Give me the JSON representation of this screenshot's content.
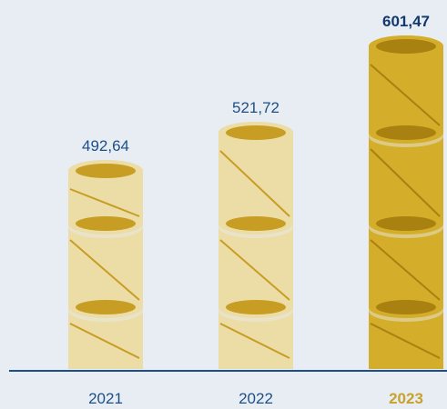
{
  "chart_data": {
    "type": "bar",
    "categories": [
      "2021",
      "2022",
      "2023"
    ],
    "values": [
      492.64,
      521.72,
      601.47
    ],
    "value_labels": [
      "492,64",
      "521,72",
      "601,47"
    ],
    "highlighted_category": "2023",
    "title": "",
    "xlabel": "",
    "ylabel": "",
    "grid": false,
    "legend": "none"
  },
  "colors": {
    "background": "#e7edf3",
    "axis": "#1d4f86",
    "label_text": "#1d4f86",
    "highlight_label_text": "#12386e",
    "highlight_x_label": "#c9a22b",
    "coin_light_body": "#ecdca6",
    "coin_light_top": "#c79d24",
    "coin_light_stripe": "#c79d24",
    "coin_dark_body": "#d4ad2a",
    "coin_dark_top": "#a98110",
    "coin_dark_stripe": "#a98110"
  }
}
